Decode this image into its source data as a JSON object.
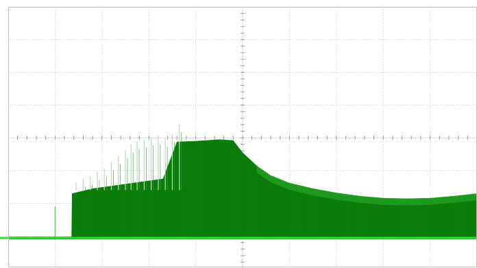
{
  "chart_data": {
    "type": "area",
    "title": "",
    "xlabel": "",
    "ylabel": "",
    "grid": "on",
    "divisions": {
      "x": 10,
      "y": 8
    },
    "xlim": [
      0,
      10
    ],
    "ylim": [
      -4,
      4
    ],
    "baseline": -3.06,
    "colors": {
      "envelope": "#0a7a0a",
      "envelope_light": "#2aa82a",
      "baseline": "#33dd33",
      "spikes": "#b9dcb9",
      "grid": "#c9c9c9",
      "background": "#ffffff"
    },
    "series": [
      {
        "values_top": [
          [
            0.0,
            -3.02
          ],
          [
            1.2,
            -3.02
          ],
          [
            1.35,
            -3.02
          ],
          [
            1.36,
            -1.7
          ],
          [
            1.8,
            -1.55
          ],
          [
            2.3,
            -1.45
          ],
          [
            2.8,
            -1.35
          ],
          [
            3.3,
            -1.25
          ],
          [
            3.6,
            -0.12
          ],
          [
            4.0,
            -0.1
          ],
          [
            4.5,
            -0.05
          ],
          [
            4.8,
            -0.08
          ],
          [
            5.0,
            -0.45
          ],
          [
            5.3,
            -0.85
          ],
          [
            5.6,
            -1.15
          ],
          [
            6.0,
            -1.38
          ],
          [
            6.5,
            -1.55
          ],
          [
            7.0,
            -1.68
          ],
          [
            7.5,
            -1.78
          ],
          [
            8.0,
            -1.84
          ],
          [
            8.5,
            -1.86
          ],
          [
            9.0,
            -1.84
          ],
          [
            9.5,
            -1.78
          ],
          [
            10.0,
            -1.7
          ]
        ]
      },
      {
        "spikes": [
          [
            1.45,
            -1.38
          ],
          [
            1.6,
            -1.25
          ],
          [
            1.75,
            -1.18
          ],
          [
            1.9,
            -1.05
          ],
          [
            2.05,
            -0.95
          ],
          [
            2.2,
            -0.75
          ],
          [
            2.35,
            -0.55
          ],
          [
            2.5,
            -0.38
          ],
          [
            2.62,
            -0.2
          ],
          [
            2.75,
            -0.1
          ],
          [
            2.9,
            -0.05
          ],
          [
            3.05,
            0.02
          ],
          [
            3.2,
            0.05
          ],
          [
            3.35,
            -0.02
          ],
          [
            3.5,
            0.12
          ],
          [
            3.65,
            0.42
          ]
        ]
      },
      {
        "glitch": [
          1.0,
          -2.1
        ]
      }
    ]
  }
}
